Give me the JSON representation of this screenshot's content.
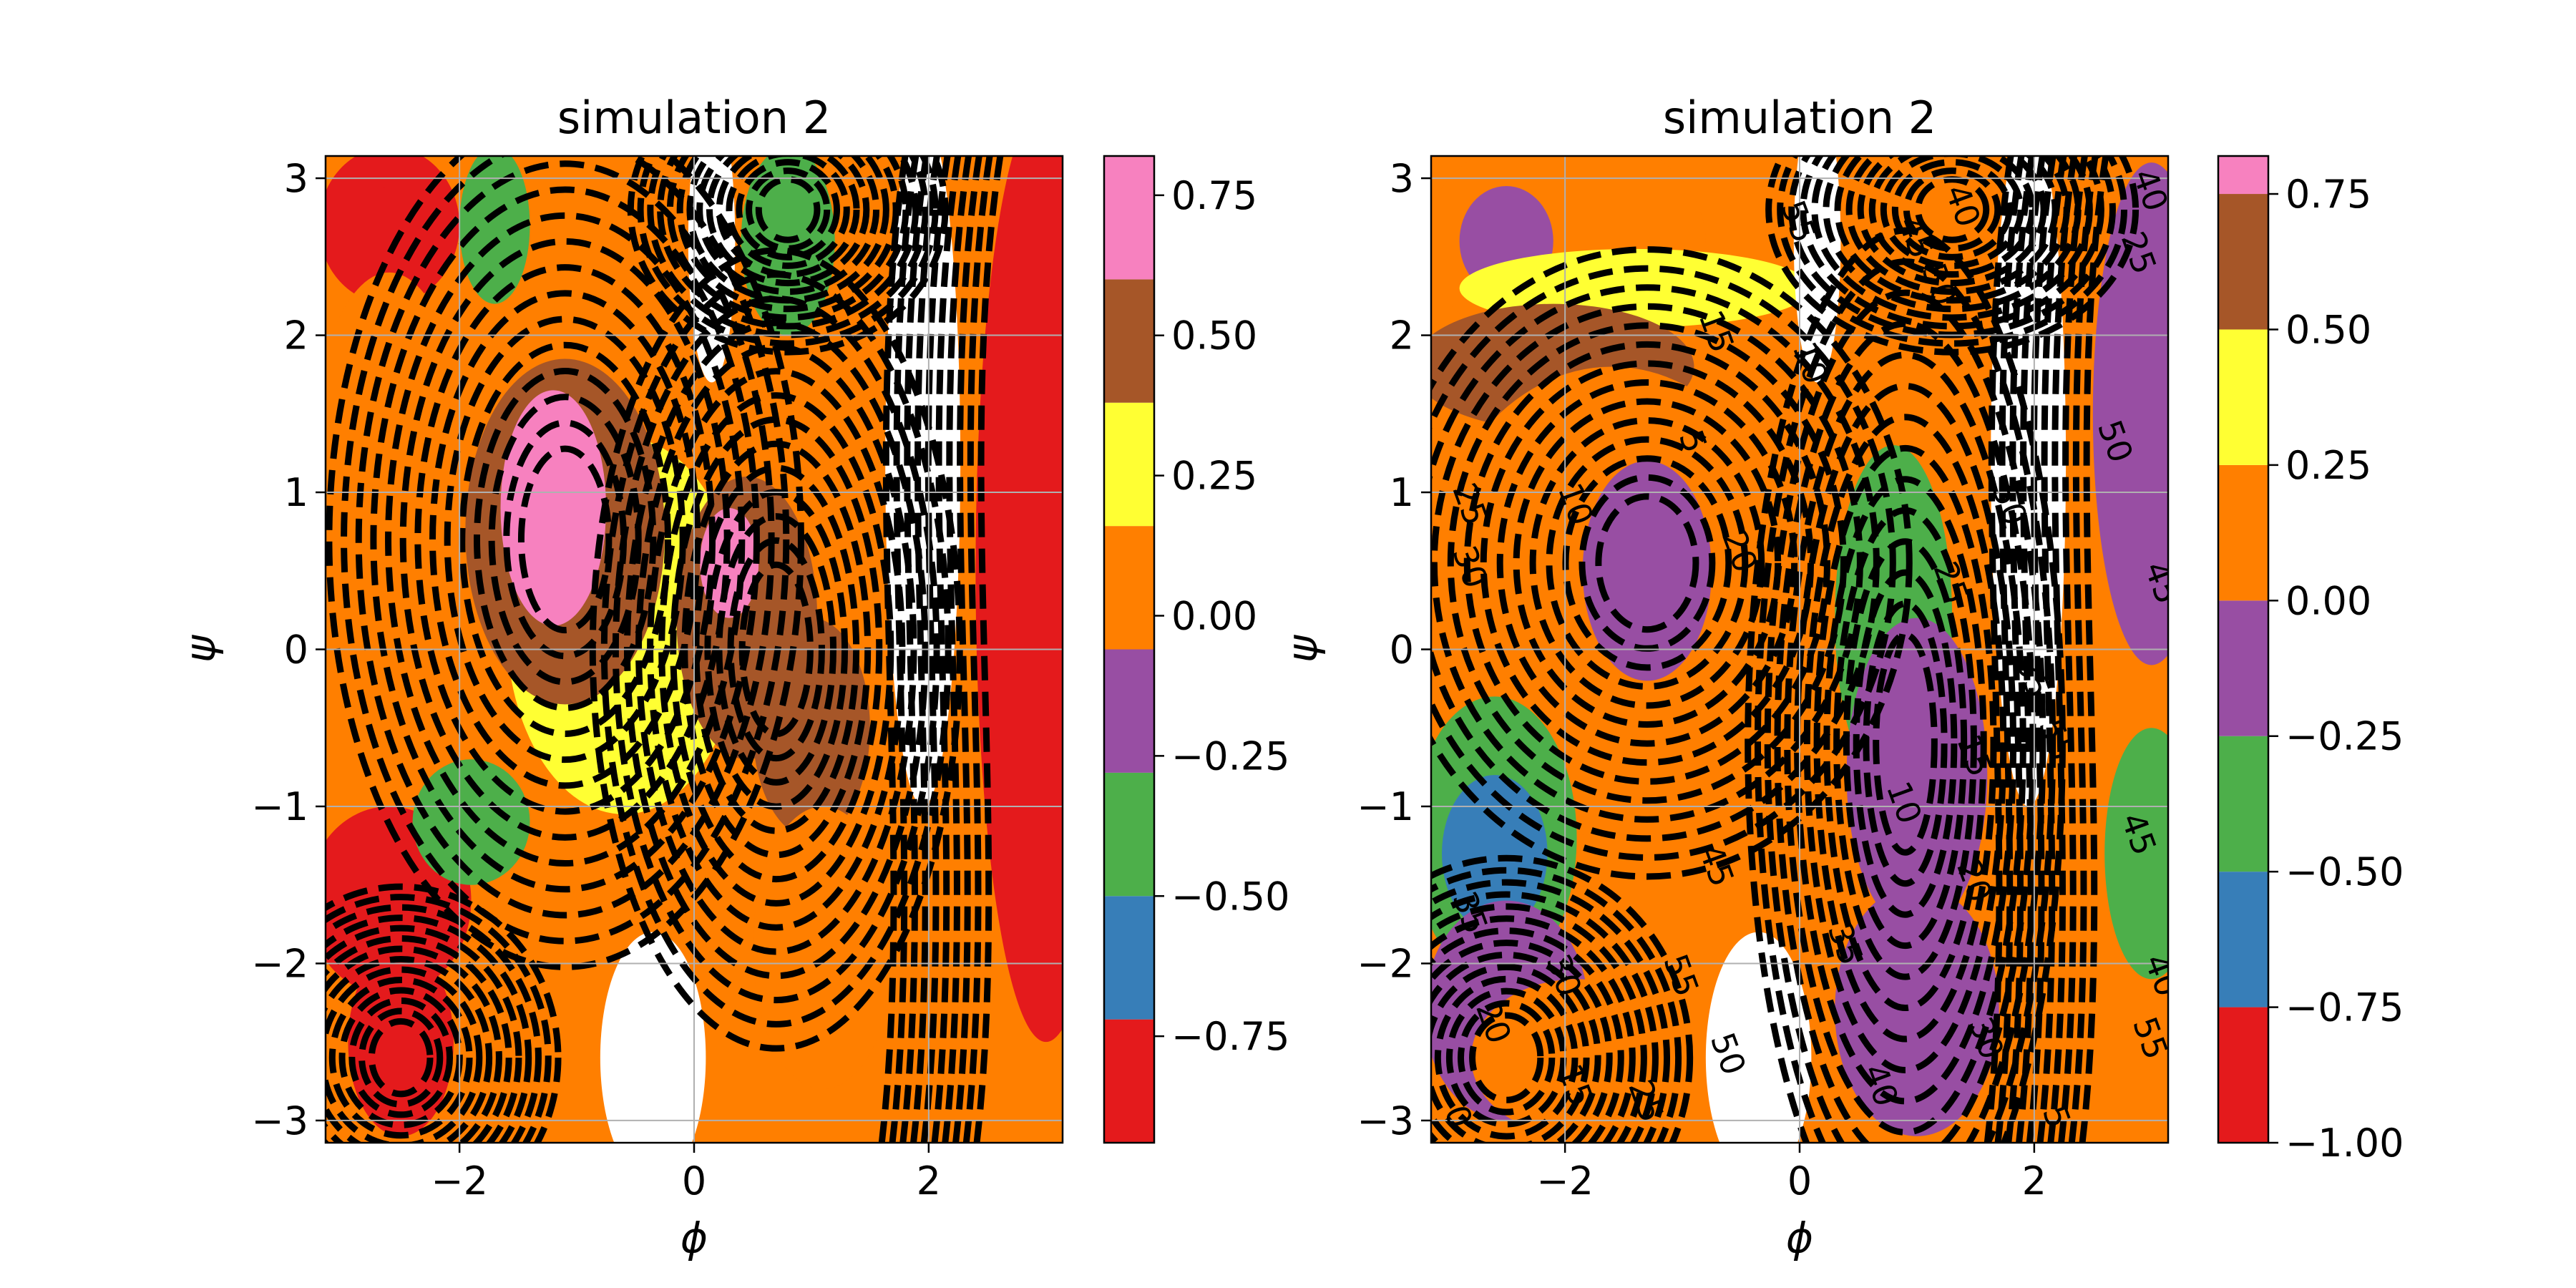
{
  "figure": {
    "background": "#ffffff"
  },
  "chart_data": [
    {
      "type": "heatmap",
      "title": "simulation 2",
      "xlabel": "ϕ",
      "ylabel": "ψ",
      "xlim": [
        -3.1416,
        3.1416
      ],
      "ylim": [
        -3.1416,
        3.1416
      ],
      "x_ticks": [
        -2,
        0,
        2
      ],
      "x_tick_labels": [
        "−2",
        "0",
        "2"
      ],
      "y_ticks": [
        -3,
        -2,
        -1,
        0,
        1,
        2,
        3
      ],
      "y_tick_labels": [
        "−3",
        "−2",
        "−1",
        "0",
        "1",
        "2",
        "3"
      ],
      "grid": true,
      "overlay": "dashed black free-energy contours with inline labels",
      "contour_labels": [],
      "colorbar": {
        "boundaries": [
          -0.94,
          -0.72,
          -0.5,
          -0.28,
          -0.06,
          0.16,
          0.38,
          0.6,
          0.82
        ],
        "colors": [
          "#e41a1c",
          "#377eb8",
          "#4daf4a",
          "#984ea3",
          "#ff7f00",
          "#ffff33",
          "#a65628",
          "#f781bf",
          "#999999"
        ],
        "tick_values": [
          -0.75,
          -0.5,
          -0.25,
          0.0,
          0.25,
          0.5,
          0.75
        ],
        "tick_labels": [
          "−0.75",
          "−0.50",
          "−0.25",
          "0.00",
          "0.25",
          "0.50",
          "0.75"
        ]
      },
      "regions": [
        {
          "center": [
            -2.6,
            2.7
          ],
          "radius": [
            0.6,
            0.5
          ],
          "value": -0.8
        },
        {
          "center": [
            -2.6,
            2.7
          ],
          "radius": [
            0.18,
            0.25
          ],
          "value": -0.98
        },
        {
          "center": [
            -1.7,
            2.7
          ],
          "radius": [
            0.3,
            0.5
          ],
          "value": -0.3
        },
        {
          "center": [
            -2.6,
            1.0
          ],
          "radius": [
            0.7,
            1.4
          ],
          "value": -0.05
        },
        {
          "center": [
            -1.1,
            0.6
          ],
          "radius": [
            1.1,
            1.5
          ],
          "value": 0.15
        },
        {
          "center": [
            -0.6,
            0.15
          ],
          "radius": [
            1.0,
            1.2
          ],
          "value": 0.3
        },
        {
          "center": [
            -1.1,
            0.75
          ],
          "radius": [
            0.85,
            1.1
          ],
          "value": 0.5
        },
        {
          "center": [
            -1.2,
            0.9
          ],
          "radius": [
            0.45,
            0.75
          ],
          "value": 0.72
        },
        {
          "center": [
            0.45,
            0.2
          ],
          "radius": [
            0.6,
            0.9
          ],
          "value": 0.5
        },
        {
          "center": [
            0.3,
            0.55
          ],
          "radius": [
            0.25,
            0.35
          ],
          "value": 0.72
        },
        {
          "center": [
            1.0,
            -0.5
          ],
          "radius": [
            0.5,
            0.7
          ],
          "value": 0.5
        },
        {
          "center": [
            -2.6,
            -1.6
          ],
          "radius": [
            0.7,
            0.6
          ],
          "value": -0.75
        },
        {
          "center": [
            -2.5,
            -2.5
          ],
          "radius": [
            0.45,
            0.6
          ],
          "value": -0.98
        },
        {
          "center": [
            -1.9,
            -1.1
          ],
          "radius": [
            0.5,
            0.4
          ],
          "value": -0.5
        },
        {
          "center": [
            1.1,
            -1.9
          ],
          "radius": [
            0.6,
            0.9
          ],
          "value": 0.1
        },
        {
          "center": [
            0.8,
            2.6
          ],
          "radius": [
            0.4,
            0.6
          ],
          "value": -0.3
        },
        {
          "center": [
            3.0,
            0.5
          ],
          "radius": [
            0.6,
            3.0
          ],
          "value": -0.75
        }
      ],
      "contour_centers": [
        {
          "center": [
            -1.1,
            0.7
          ],
          "radius": [
            0.45,
            0.75
          ]
        },
        {
          "center": [
            0.7,
            0.0
          ],
          "radius": [
            0.35,
            0.7
          ]
        },
        {
          "center": [
            -2.5,
            -2.6
          ],
          "radius": [
            0.3,
            0.3
          ]
        },
        {
          "center": [
            0.8,
            2.8
          ],
          "radius": [
            0.3,
            0.25
          ]
        }
      ]
    },
    {
      "type": "heatmap",
      "title": "simulation 2",
      "xlabel": "ϕ",
      "ylabel": "ψ",
      "xlim": [
        -3.1416,
        3.1416
      ],
      "ylim": [
        -3.1416,
        3.1416
      ],
      "x_ticks": [
        -2,
        0,
        2
      ],
      "x_tick_labels": [
        "−2",
        "0",
        "2"
      ],
      "y_ticks": [
        -3,
        -2,
        -1,
        0,
        1,
        2,
        3
      ],
      "y_tick_labels": [
        "−3",
        "−2",
        "−1",
        "0",
        "1",
        "2",
        "3"
      ],
      "grid": true,
      "overlay": "dashed black free-energy contours with inline labels",
      "contour_labels": [
        {
          "text": "55",
          "pos": [
            -0.1,
            2.7
          ]
        },
        {
          "text": "45",
          "pos": [
            0.9,
            2.6
          ]
        },
        {
          "text": "40",
          "pos": [
            1.3,
            2.8
          ]
        },
        {
          "text": "50",
          "pos": [
            1.1,
            2.3
          ]
        },
        {
          "text": "15",
          "pos": [
            -0.8,
            2.0
          ]
        },
        {
          "text": "10",
          "pos": [
            0.0,
            1.8
          ]
        },
        {
          "text": "5",
          "pos": [
            -1.0,
            1.3
          ]
        },
        {
          "text": "10",
          "pos": [
            -2.0,
            0.9
          ]
        },
        {
          "text": "20",
          "pos": [
            -0.6,
            0.6
          ]
        },
        {
          "text": "25",
          "pos": [
            -2.9,
            0.9
          ]
        },
        {
          "text": "30",
          "pos": [
            -2.9,
            0.5
          ]
        },
        {
          "text": "50",
          "pos": [
            1.7,
            0.9
          ]
        },
        {
          "text": "25",
          "pos": [
            1.2,
            0.4
          ]
        },
        {
          "text": "35",
          "pos": [
            1.9,
            -0.2
          ]
        },
        {
          "text": "15",
          "pos": [
            1.4,
            -0.7
          ]
        },
        {
          "text": "55",
          "pos": [
            2.1,
            -0.6
          ]
        },
        {
          "text": "10",
          "pos": [
            0.8,
            -1.0
          ]
        },
        {
          "text": "20",
          "pos": [
            1.4,
            -1.5
          ]
        },
        {
          "text": "45",
          "pos": [
            -0.8,
            -1.4
          ]
        },
        {
          "text": "35",
          "pos": [
            0.3,
            -1.9
          ]
        },
        {
          "text": "35",
          "pos": [
            -2.9,
            -1.7
          ]
        },
        {
          "text": "30",
          "pos": [
            -2.1,
            -2.1
          ]
        },
        {
          "text": "20",
          "pos": [
            -2.7,
            -2.4
          ]
        },
        {
          "text": "55",
          "pos": [
            -1.1,
            -2.1
          ]
        },
        {
          "text": "50",
          "pos": [
            -0.7,
            -2.6
          ]
        },
        {
          "text": "15",
          "pos": [
            -2.0,
            -2.8
          ]
        },
        {
          "text": "25",
          "pos": [
            -1.4,
            -2.9
          ]
        },
        {
          "text": "30",
          "pos": [
            1.5,
            -2.5
          ]
        },
        {
          "text": "40",
          "pos": [
            0.6,
            -2.8
          ]
        },
        {
          "text": "0",
          "pos": [
            -3.0,
            -3.0
          ]
        },
        {
          "text": "5",
          "pos": [
            2.1,
            -3.0
          ]
        },
        {
          "text": "45",
          "pos": [
            2.8,
            -1.2
          ]
        },
        {
          "text": "40",
          "pos": [
            2.9,
            2.9
          ]
        },
        {
          "text": "25",
          "pos": [
            2.8,
            2.5
          ]
        },
        {
          "text": "50",
          "pos": [
            2.6,
            1.3
          ]
        },
        {
          "text": "45",
          "pos": [
            3.0,
            0.4
          ]
        },
        {
          "text": "40",
          "pos": [
            3.0,
            -2.1
          ]
        },
        {
          "text": "55",
          "pos": [
            2.9,
            -2.5
          ]
        }
      ],
      "colorbar": {
        "boundaries": [
          -1.0,
          -0.75,
          -0.5,
          -0.25,
          0.0,
          0.25,
          0.5,
          0.75,
          0.82
        ],
        "colors": [
          "#e41a1c",
          "#377eb8",
          "#4daf4a",
          "#984ea3",
          "#ff7f00",
          "#ffff33",
          "#a65628",
          "#f781bf",
          "#999999"
        ],
        "tick_values": [
          -1.0,
          -0.75,
          -0.5,
          -0.25,
          0.0,
          0.25,
          0.5,
          0.75
        ],
        "tick_labels": [
          "−1.00",
          "−0.75",
          "−0.50",
          "−0.25",
          "0.00",
          "0.25",
          "0.50",
          "0.75"
        ]
      },
      "regions": [
        {
          "center": [
            -2.0,
            2.6
          ],
          "radius": [
            1.2,
            0.7
          ],
          "value": 0.1
        },
        {
          "center": [
            -2.5,
            2.6
          ],
          "radius": [
            0.4,
            0.35
          ],
          "value": -0.05
        },
        {
          "center": [
            -1.4,
            2.3
          ],
          "radius": [
            1.5,
            0.25
          ],
          "value": 0.3
        },
        {
          "center": [
            -2.1,
            1.8
          ],
          "radius": [
            1.2,
            0.4
          ],
          "value": 0.55
        },
        {
          "center": [
            -1.6,
            0.3
          ],
          "radius": [
            1.6,
            1.5
          ],
          "value": 0.1
        },
        {
          "center": [
            -1.3,
            0.5
          ],
          "radius": [
            0.55,
            0.7
          ],
          "value": -0.05
        },
        {
          "center": [
            0.8,
            0.2
          ],
          "radius": [
            0.5,
            1.1
          ],
          "value": -0.3
        },
        {
          "center": [
            1.0,
            -0.8
          ],
          "radius": [
            0.6,
            1.0
          ],
          "value": -0.05
        },
        {
          "center": [
            -2.6,
            -1.2
          ],
          "radius": [
            0.7,
            0.9
          ],
          "value": -0.3
        },
        {
          "center": [
            -2.6,
            -1.3
          ],
          "radius": [
            0.45,
            0.5
          ],
          "value": -0.75
        },
        {
          "center": [
            -2.5,
            -2.3
          ],
          "radius": [
            0.7,
            0.7
          ],
          "value": -0.05
        },
        {
          "center": [
            -1.9,
            -2.6
          ],
          "radius": [
            0.9,
            0.5
          ],
          "value": 0.1
        },
        {
          "center": [
            1.3,
            2.8
          ],
          "radius": [
            0.6,
            0.4
          ],
          "value": 0.1
        },
        {
          "center": [
            1.0,
            -2.3
          ],
          "radius": [
            0.7,
            0.8
          ],
          "value": -0.05
        },
        {
          "center": [
            3.0,
            1.5
          ],
          "radius": [
            0.5,
            1.6
          ],
          "value": -0.05
        },
        {
          "center": [
            3.0,
            -1.3
          ],
          "radius": [
            0.4,
            0.8
          ],
          "value": -0.3
        }
      ],
      "contour_centers": [
        {
          "center": [
            -1.3,
            0.55
          ],
          "radius": [
            0.5,
            0.55
          ]
        },
        {
          "center": [
            0.9,
            -0.6
          ],
          "radius": [
            0.3,
            0.9
          ]
        },
        {
          "center": [
            -2.5,
            -2.6
          ],
          "radius": [
            0.35,
            0.35
          ]
        },
        {
          "center": [
            1.3,
            2.8
          ],
          "radius": [
            0.35,
            0.25
          ]
        }
      ]
    }
  ]
}
